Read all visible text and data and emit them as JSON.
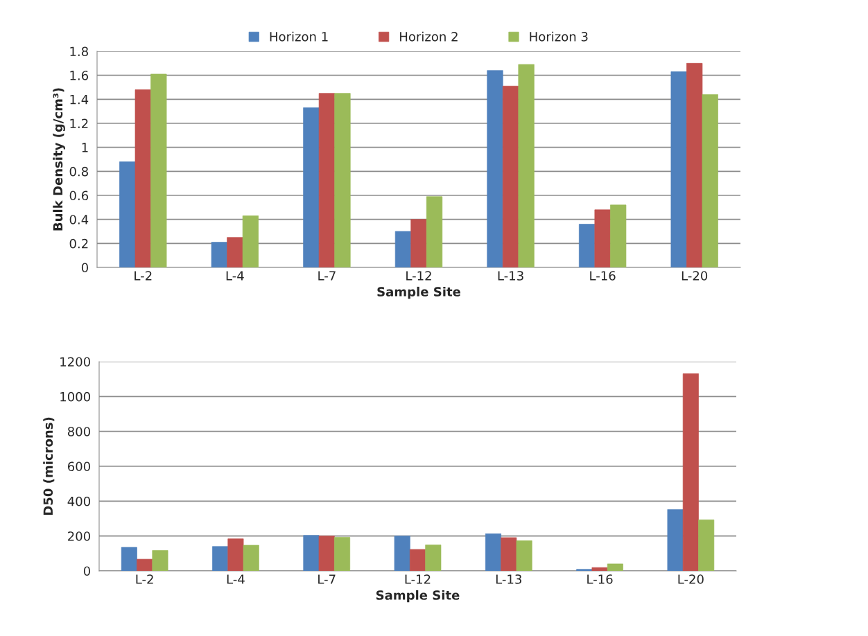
{
  "chart_data": [
    {
      "type": "bar",
      "xlabel": "Sample Site",
      "ylabel": "Bulk Density (g/cm³)",
      "categories": [
        "L-2",
        "L-4",
        "L-7",
        "L-12",
        "L-13",
        "L-16",
        "L-20"
      ],
      "series": [
        {
          "name": "Horizon 1",
          "color": "#4f81bd",
          "values": [
            0.88,
            0.21,
            1.33,
            0.3,
            1.64,
            0.36,
            1.63
          ]
        },
        {
          "name": "Horizon 2",
          "color": "#c0504d",
          "values": [
            1.48,
            0.25,
            1.45,
            0.4,
            1.51,
            0.48,
            1.7
          ]
        },
        {
          "name": "Horizon 3",
          "color": "#9bbb59",
          "values": [
            1.61,
            0.43,
            1.45,
            0.59,
            1.69,
            0.52,
            1.44
          ]
        }
      ],
      "ylim": [
        0,
        1.8
      ],
      "yticks": [
        0,
        0.2,
        0.4,
        0.6,
        0.8,
        1,
        1.2,
        1.4,
        1.6,
        1.8
      ],
      "grid": "y",
      "legend": "top"
    },
    {
      "type": "bar",
      "xlabel": "Sample Site",
      "ylabel": "D50 (microns)",
      "categories": [
        "L-2",
        "L-4",
        "L-7",
        "L-12",
        "L-13",
        "L-16",
        "L-20"
      ],
      "series": [
        {
          "color": "#4f81bd",
          "values": [
            135,
            140,
            204,
            200,
            213,
            9,
            352
          ]
        },
        {
          "color": "#c0504d",
          "values": [
            67,
            184,
            200,
            123,
            191,
            19,
            1131
          ]
        },
        {
          "color": "#9bbb59",
          "values": [
            117,
            147,
            193,
            149,
            173,
            40,
            293
          ]
        }
      ],
      "ylim": [
        0,
        1200
      ],
      "yticks": [
        0,
        200,
        400,
        600,
        800,
        1000,
        1200
      ],
      "grid": "y"
    }
  ]
}
